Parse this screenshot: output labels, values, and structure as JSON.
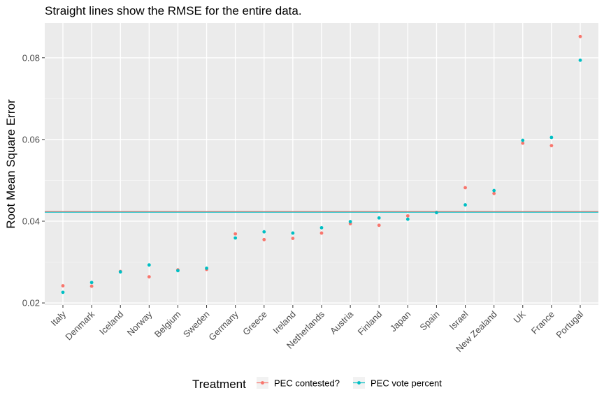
{
  "chart_data": {
    "type": "scatter",
    "title": "Straight lines show the RMSE for the entire data.",
    "xlabel": "",
    "ylabel": "Root Mean Square Error",
    "ylim": [
      0.0195,
      0.0885
    ],
    "yticks": [
      0.02,
      0.04,
      0.06,
      0.08
    ],
    "ytick_labels": [
      "0.02",
      "0.04",
      "0.06",
      "0.08"
    ],
    "grid": true,
    "legend": {
      "title": "Treatment",
      "position": "bottom"
    },
    "categories": [
      "Italy",
      "Denmark",
      "Iceland",
      "Norway",
      "Belgium",
      "Sweden",
      "Germany",
      "Greece",
      "Ireland",
      "Netherlands",
      "Austria",
      "Finland",
      "Japan",
      "Spain",
      "Israel",
      "New Zealand",
      "UK",
      "France",
      "Portugal"
    ],
    "series": [
      {
        "name": "PEC contested?",
        "color": "#F8766D",
        "values": [
          0.0242,
          0.0241,
          0.0277,
          0.0264,
          0.0281,
          0.0282,
          0.0369,
          0.0355,
          0.0358,
          0.0371,
          0.0394,
          0.039,
          0.0413,
          0.0422,
          0.0482,
          0.0468,
          0.0591,
          0.0585,
          0.0852
        ],
        "overall_rmse": 0.0424
      },
      {
        "name": "PEC vote percent",
        "color": "#00BFC4",
        "values": [
          0.0226,
          0.025,
          0.0276,
          0.0293,
          0.0279,
          0.0285,
          0.0359,
          0.0374,
          0.0371,
          0.0384,
          0.0399,
          0.0408,
          0.0405,
          0.0421,
          0.044,
          0.0475,
          0.0598,
          0.0605,
          0.0794
        ],
        "overall_rmse": 0.0422
      }
    ]
  }
}
